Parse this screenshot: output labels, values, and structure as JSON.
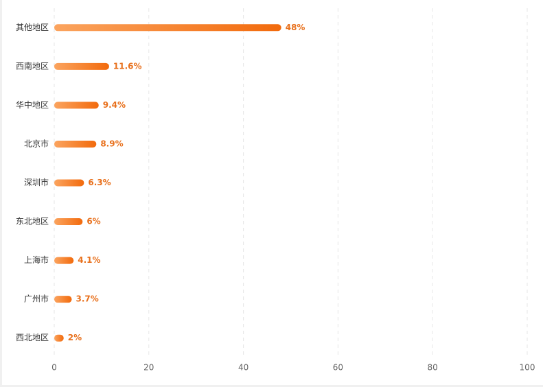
{
  "chart_data": {
    "type": "bar",
    "orientation": "horizontal",
    "categories": [
      "其他地区",
      "西南地区",
      "华中地区",
      "北京市",
      "深圳市",
      "东北地区",
      "上海市",
      "广州市",
      "西北地区"
    ],
    "values": [
      48,
      11.6,
      9.4,
      8.9,
      6.3,
      6,
      4.1,
      3.7,
      2
    ],
    "value_labels": [
      "48%",
      "11.6%",
      "9.4%",
      "8.9%",
      "6.3%",
      "6%",
      "4.1%",
      "3.7%",
      "2%"
    ],
    "gradient": [
      "#fba45f",
      "#f26a0c"
    ],
    "label_color": "#e8701c",
    "xlim": [
      0,
      100
    ],
    "xticks": [
      0,
      20,
      40,
      60,
      80,
      100
    ],
    "grid": true
  }
}
